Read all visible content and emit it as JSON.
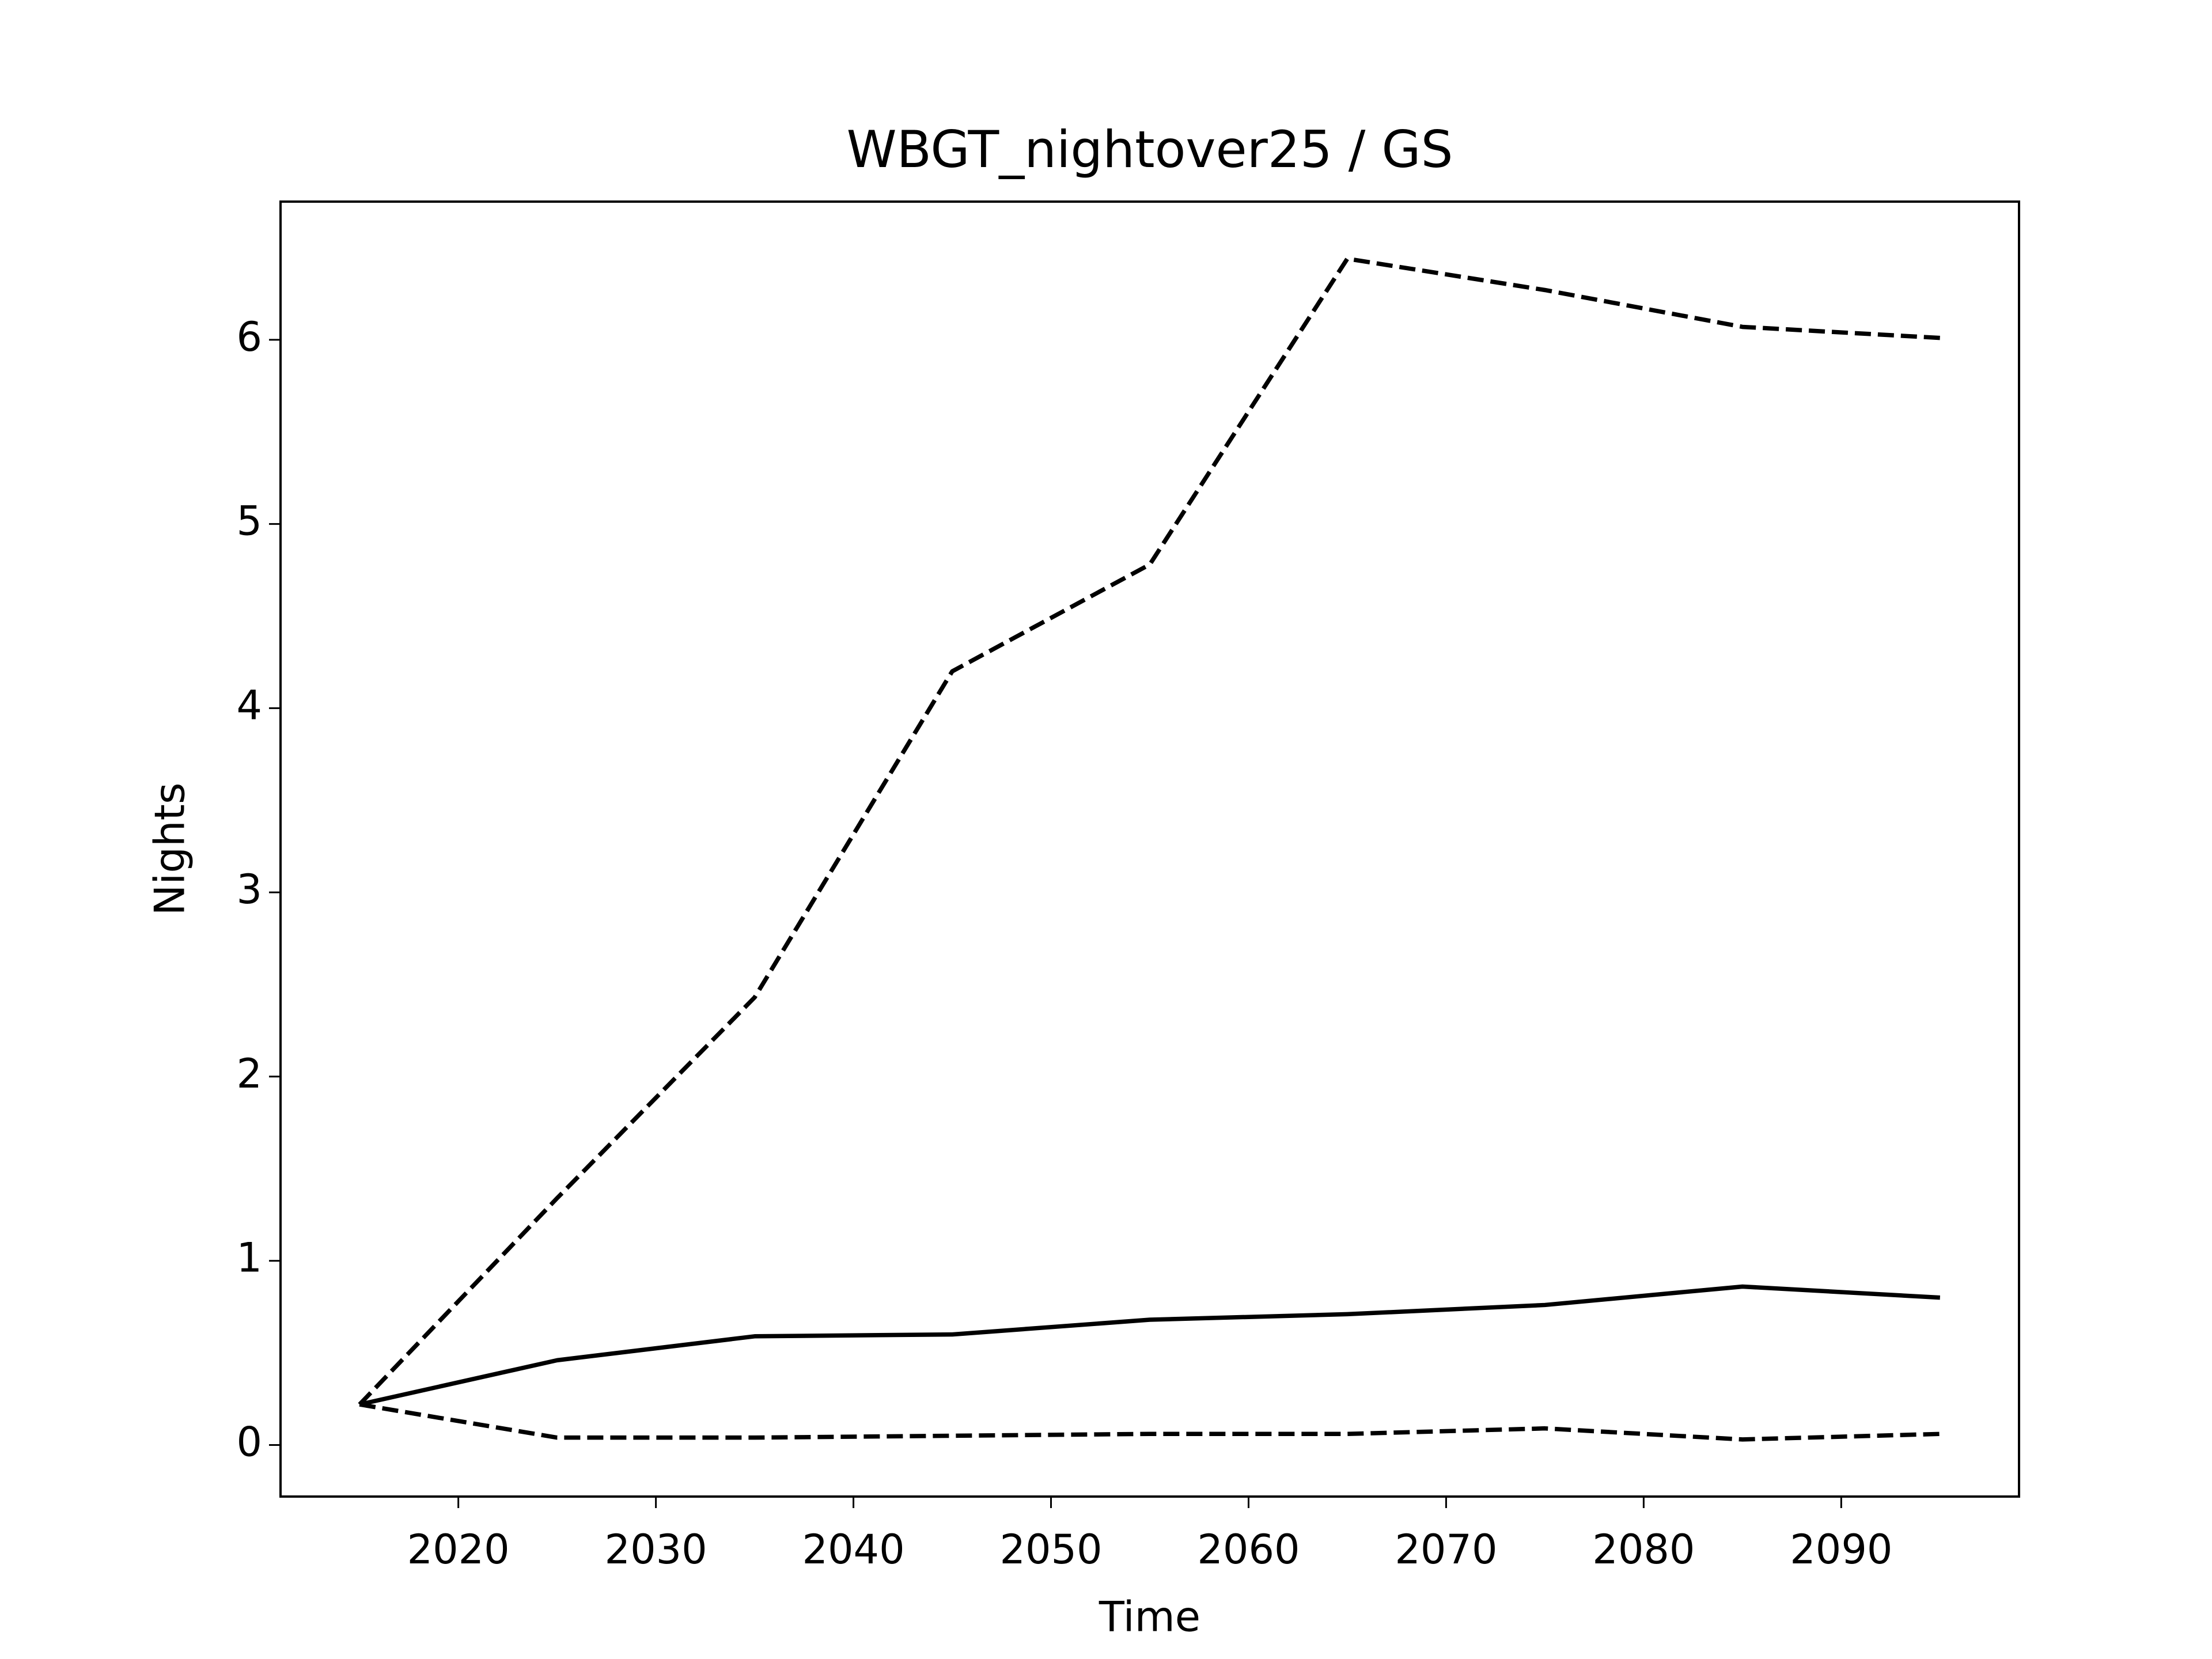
{
  "chart_data": {
    "type": "line",
    "title": "WBGT_nightover25 / GS",
    "x_label": "Time",
    "y_label": "Nights",
    "x": [
      2015,
      2025,
      2035,
      2045,
      2055,
      2065,
      2075,
      2085,
      2095
    ],
    "series": [
      {
        "color": "#000000",
        "dashed": true,
        "values": [
          0.22,
          1.34,
          2.43,
          4.2,
          4.78,
          6.44,
          6.27,
          6.07,
          6.01
        ]
      },
      {
        "color": "#000000",
        "dashed": false,
        "values": [
          0.22,
          0.46,
          0.59,
          0.6,
          0.68,
          0.71,
          0.76,
          0.86,
          0.8
        ]
      },
      {
        "color": "#000000",
        "dashed": true,
        "values": [
          0.22,
          0.04,
          0.04,
          0.05,
          0.06,
          0.06,
          0.09,
          0.03,
          0.06
        ]
      }
    ],
    "xlim": [
      2011,
      2099
    ],
    "xticks": [
      2020,
      2030,
      2040,
      2050,
      2060,
      2070,
      2080,
      2090
    ],
    "ylim": [
      -0.28,
      6.75
    ],
    "yticks": [
      0,
      1,
      2,
      3,
      4,
      5,
      6
    ],
    "grid": false
  }
}
